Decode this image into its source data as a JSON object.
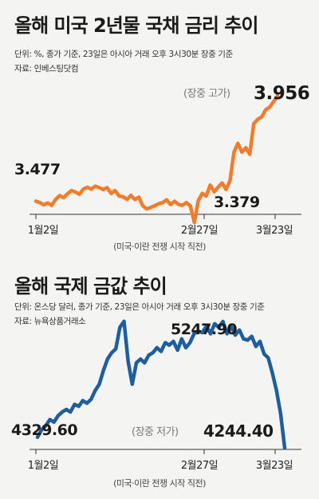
{
  "chart_data": [
    {
      "type": "line",
      "title": "올해 미국 2년물 국채 금리 추이",
      "unit_note": "단위: %, 종가 기준, 23일은 아시아 거래 오후 3시30분 장중 기준",
      "source": "자료: 인베스팅닷컴",
      "color": "#f07c2c",
      "x_ticks": [
        "1월2일",
        "2월27일",
        "3월23일"
      ],
      "event_note": "(미국·이란 전쟁 시작 직전)",
      "annotations": {
        "start_value": "3.477",
        "low_value": "3.379",
        "end_tag": "(장중 고가)",
        "end_value": "3.956"
      },
      "x": [
        0,
        1,
        2,
        3,
        4,
        5,
        6,
        7,
        8,
        9,
        10,
        11,
        12,
        13,
        14,
        15,
        16,
        17,
        18,
        19,
        20,
        21,
        22,
        23,
        24,
        25,
        26,
        27,
        28,
        29,
        30,
        31,
        32,
        33,
        34,
        35,
        36,
        37,
        38,
        39,
        40,
        41,
        42,
        43,
        44,
        45,
        46,
        47,
        48,
        49,
        50,
        51,
        52,
        53,
        54,
        55,
        56,
        57,
        58,
        59,
        60,
        61
      ],
      "values": [
        3.477,
        3.47,
        3.46,
        3.468,
        3.458,
        3.485,
        3.502,
        3.493,
        3.51,
        3.525,
        3.518,
        3.508,
        3.532,
        3.54,
        3.532,
        3.545,
        3.538,
        3.53,
        3.538,
        3.512,
        3.525,
        3.5,
        3.497,
        3.485,
        3.503,
        3.484,
        3.495,
        3.455,
        3.441,
        3.448,
        3.456,
        3.465,
        3.47,
        3.483,
        3.461,
        3.476,
        3.462,
        3.458,
        3.47,
        3.455,
        3.379,
        3.48,
        3.512,
        3.5,
        3.55,
        3.52,
        3.54,
        3.56,
        3.53,
        3.57,
        3.7,
        3.74,
        3.7,
        3.72,
        3.69,
        3.83,
        3.85,
        3.86,
        3.893,
        3.905,
        3.93,
        3.956
      ],
      "ylim": [
        3.3,
        4.0
      ]
    },
    {
      "type": "line",
      "title": "올해 국제 금값 추이",
      "unit_note": "단위: 온스당 달러, 종가 기준, 23일은 아시아 거래 오후 3시30분 장중 기준",
      "source": "자료: 뉴욕상품거래소",
      "color": "#1f5e9e",
      "x_ticks": [
        "1월2일",
        "2월27일",
        "3월23일"
      ],
      "event_note": "(미국·이란 전쟁 시작 직전)",
      "annotations": {
        "start_value": "4329.60",
        "peak_value": "5247.90",
        "end_tag": "(장중 저가)",
        "end_value": "4244.40"
      },
      "x": [
        0,
        1,
        2,
        3,
        4,
        5,
        6,
        7,
        8,
        9,
        10,
        11,
        12,
        13,
        14,
        15,
        16,
        17,
        18,
        19,
        20,
        21,
        22,
        23,
        24,
        25,
        26,
        27,
        28,
        29,
        30,
        31,
        32,
        33,
        34,
        35,
        36,
        37,
        38,
        39,
        40,
        41,
        42,
        43,
        44,
        45,
        46,
        47,
        48,
        49,
        50,
        51,
        52,
        53,
        54,
        55,
        56,
        57,
        58,
        59,
        60
      ],
      "values": [
        4329.6,
        4390,
        4420,
        4470,
        4450,
        4500,
        4530,
        4550,
        4530,
        4590,
        4575,
        4620,
        4600,
        4630,
        4700,
        4750,
        4860,
        4950,
        5000,
        5030,
        5200,
        5250,
        4930,
        4750,
        4920,
        4950,
        4920,
        4980,
        5000,
        5040,
        5010,
        5080,
        5060,
        5090,
        5020,
        5110,
        5040,
        5080,
        5150,
        5170,
        5160,
        5210,
        5150,
        5230,
        5200,
        5247.9,
        5150,
        5210,
        5140,
        5180,
        5110,
        5100,
        5130,
        5050,
        5090,
        4990,
        4960,
        4840,
        4700,
        4520,
        4244.4
      ],
      "ylim": [
        4100,
        5400
      ]
    }
  ]
}
